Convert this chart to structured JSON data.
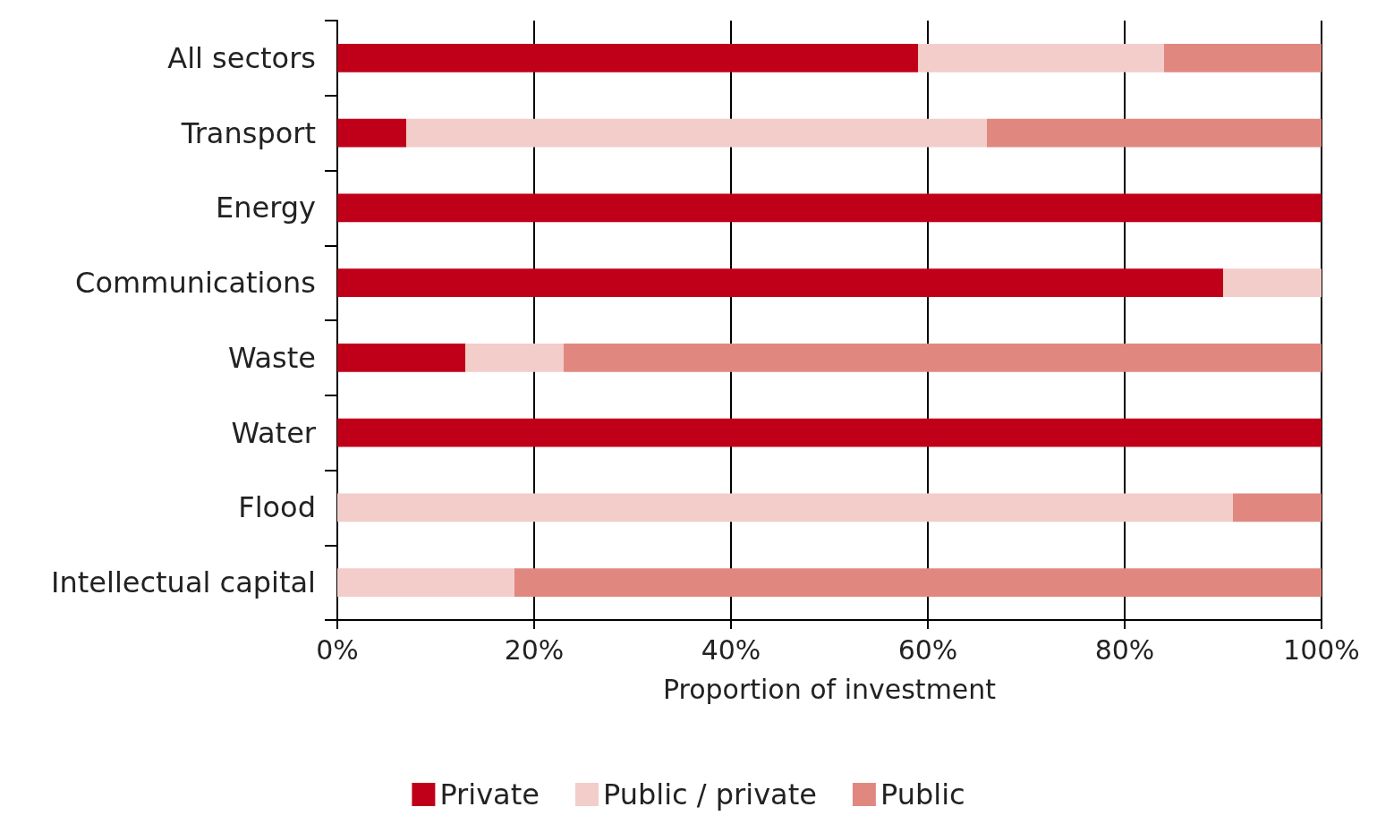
{
  "chart_data": {
    "type": "bar",
    "orientation": "horizontal",
    "stacked": true,
    "categories": [
      "All sectors",
      "Transport",
      "Energy",
      "Communications",
      "Waste",
      "Water",
      "Flood",
      "Intellectual capital"
    ],
    "series": [
      {
        "name": "Private",
        "color": "#c00018",
        "values": [
          59,
          7,
          100,
          90,
          13,
          100,
          0,
          0
        ]
      },
      {
        "name": "Public / private",
        "color": "#f2cdc9",
        "values": [
          25,
          59,
          0,
          10,
          10,
          0,
          91,
          18
        ]
      },
      {
        "name": "Public",
        "color": "#e08880",
        "values": [
          16,
          34,
          0,
          0,
          77,
          0,
          9,
          82
        ]
      }
    ],
    "xlabel": "Proportion of investment",
    "xlim": [
      0,
      100
    ],
    "xticks": [
      {
        "value": 0,
        "label": "0%"
      },
      {
        "value": 20,
        "label": "20%"
      },
      {
        "value": 40,
        "label": "40%"
      },
      {
        "value": 60,
        "label": "60%"
      },
      {
        "value": 80,
        "label": "80%"
      },
      {
        "value": 100,
        "label": "100%"
      }
    ],
    "grid": "x",
    "legend": "bottom"
  }
}
